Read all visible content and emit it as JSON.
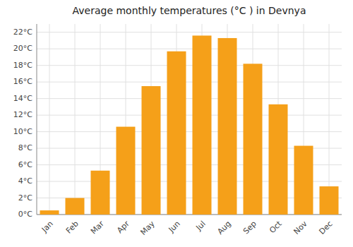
{
  "chart_data": {
    "type": "bar",
    "title": "Average monthly temperatures (°C ) in Devnya",
    "categories": [
      "Jan",
      "Feb",
      "Mar",
      "Apr",
      "May",
      "Jun",
      "Jul",
      "Aug",
      "Sep",
      "Oct",
      "Nov",
      "Dec"
    ],
    "values": [
      0.5,
      2.0,
      5.3,
      10.6,
      15.5,
      19.7,
      21.6,
      21.3,
      18.2,
      13.3,
      8.3,
      3.4
    ],
    "color": "#F5A019",
    "ylim": [
      0,
      23
    ],
    "yticks": [
      {
        "value": 0,
        "label": "0°C"
      },
      {
        "value": 2,
        "label": "2°C"
      },
      {
        "value": 4,
        "label": "4°C"
      },
      {
        "value": 6,
        "label": "6°C"
      },
      {
        "value": 8,
        "label": "8°C"
      },
      {
        "value": 10,
        "label": "10°C"
      },
      {
        "value": 12,
        "label": "12°C"
      },
      {
        "value": 14,
        "label": "14°C"
      },
      {
        "value": 16,
        "label": "16°C"
      },
      {
        "value": 18,
        "label": "18°C"
      },
      {
        "value": 20,
        "label": "20°C"
      },
      {
        "value": 22,
        "label": "22°C"
      }
    ],
    "grid": true
  }
}
